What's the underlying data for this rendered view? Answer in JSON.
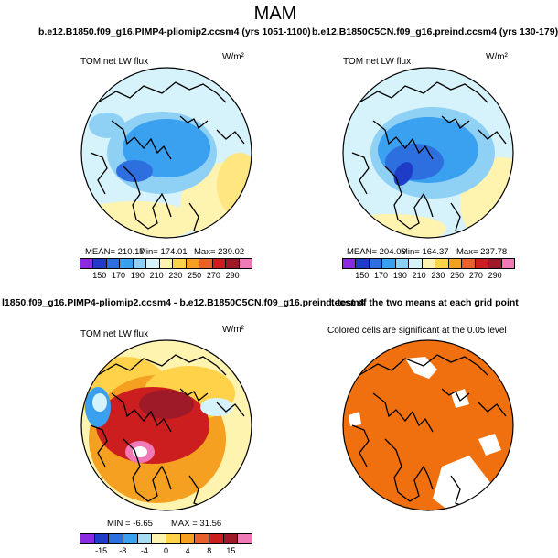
{
  "figure": {
    "suptitle": "MAM"
  },
  "chart_data": [
    {
      "type": "heatmap",
      "panel": "top-left",
      "title": "b.e12.B1850.f09_g16.PIMP4-pliomip2.ccsm4 (yrs 1051-1100)",
      "variable": "TOM net LW flux",
      "units": "W/m²",
      "stats": {
        "mean": "MEAN= 210.17",
        "min": "Min= 174.01",
        "max": "Max= 239.02"
      },
      "colorbar": {
        "ticks": [
          "150",
          "170",
          "190",
          "210",
          "230",
          "250",
          "270",
          "290"
        ],
        "colors": [
          "#8a2be2",
          "#1e3cc8",
          "#2e6fe0",
          "#3aa0f0",
          "#8fd0f5",
          "#d6f2fb",
          "#fff3b0",
          "#ffd24a",
          "#f5a020",
          "#e8602a",
          "#cc1e1e",
          "#9e1a28",
          "#f07ab8"
        ]
      }
    },
    {
      "type": "heatmap",
      "panel": "top-right",
      "title": "b.e12.B1850C5CN.f09_g16.preind.ccsm4 (yrs 130-179)",
      "variable": "TOM net LW flux",
      "units": "W/m²",
      "stats": {
        "mean": "MEAN= 204.06",
        "min": "Min= 164.37",
        "max": "Max= 237.78"
      },
      "colorbar": {
        "ticks": [
          "150",
          "170",
          "190",
          "210",
          "230",
          "250",
          "270",
          "290"
        ],
        "colors": [
          "#8a2be2",
          "#1e3cc8",
          "#2e6fe0",
          "#3aa0f0",
          "#8fd0f5",
          "#d6f2fb",
          "#fff3b0",
          "#ffd24a",
          "#f5a020",
          "#e8602a",
          "#cc1e1e",
          "#9e1a28",
          "#f07ab8"
        ]
      }
    },
    {
      "type": "heatmap",
      "panel": "bottom-left",
      "title": "l1850.f09_g16.PIMP4-pliomip2.ccsm4 - b.e12.B1850C5CN.f09_g16.preind.ccsm4",
      "variable": "TOM net LW flux",
      "units": "W/m²",
      "stats": {
        "mean": "",
        "min": "MIN = -6.65",
        "max": "MAX = 31.56"
      },
      "colorbar": {
        "ticks": [
          "-15",
          "-8",
          "-4",
          "0",
          "4",
          "8",
          "15"
        ],
        "colors": [
          "#8a2be2",
          "#1e3cc8",
          "#2e6fe0",
          "#3aa0f0",
          "#a8dcf5",
          "#fff3b0",
          "#ffd24a",
          "#f5a020",
          "#e8602a",
          "#cc1e1e",
          "#9e1a28",
          "#f07ab8"
        ]
      }
    },
    {
      "type": "heatmap",
      "panel": "bottom-right",
      "title": "t-test of the two means at each grid point",
      "subtitle": "Colored cells are significant at the 0.05 level",
      "fill_color": "#f07010"
    }
  ]
}
